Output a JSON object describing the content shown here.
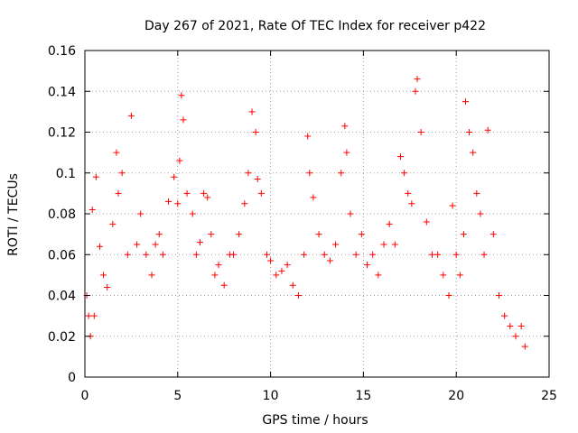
{
  "chart_data": {
    "type": "scatter",
    "title": "Day 267 of 2021, Rate Of TEC Index for receiver p422",
    "xlabel": "GPS time / hours",
    "ylabel": "ROTI / TECUs",
    "xlim": [
      0,
      25
    ],
    "ylim": [
      0,
      0.16
    ],
    "xticks": [
      0,
      5,
      10,
      15,
      20,
      25
    ],
    "yticks": [
      0,
      0.02,
      0.04,
      0.06,
      0.08,
      0.1,
      0.12,
      0.14,
      0.16
    ],
    "xtick_labels": [
      "0",
      "5",
      "10",
      "15",
      "20",
      "25"
    ],
    "ytick_labels": [
      "0",
      "0.02",
      "0.04",
      "0.06",
      "0.08",
      "0.1",
      "0.12",
      "0.14",
      "0.16"
    ],
    "grid": true,
    "marker": "+",
    "color": "#ff0000",
    "series": [
      {
        "x": [
          0.1,
          0.2,
          0.3,
          0.4,
          0.5,
          0.6,
          0.8,
          1.0,
          1.2,
          1.5,
          1.7,
          1.8,
          2.0,
          2.3,
          2.5,
          2.8,
          3.0,
          3.3,
          3.6,
          3.8,
          4.0,
          4.2,
          4.5,
          4.8,
          5.0,
          5.1,
          5.2,
          5.3,
          5.5,
          5.8,
          6.0,
          6.2,
          6.4,
          6.6,
          6.8,
          7.0,
          7.2,
          7.5,
          7.8,
          8.0,
          8.3,
          8.6,
          8.8,
          9.0,
          9.2,
          9.3,
          9.5,
          9.8,
          10.0,
          10.3,
          10.6,
          10.9,
          11.2,
          11.5,
          11.8,
          12.0,
          12.1,
          12.3,
          12.6,
          12.9,
          13.2,
          13.5,
          13.8,
          14.0,
          14.1,
          14.3,
          14.6,
          14.9,
          15.2,
          15.5,
          15.8,
          16.1,
          16.4,
          16.7,
          17.0,
          17.2,
          17.4,
          17.6,
          17.8,
          17.9,
          18.1,
          18.4,
          18.7,
          19.0,
          19.3,
          19.6,
          19.8,
          20.0,
          20.2,
          20.4,
          20.5,
          20.7,
          20.9,
          21.1,
          21.3,
          21.5,
          21.7,
          22.0,
          22.3,
          22.6,
          22.9,
          23.2,
          23.5,
          23.7
        ],
        "y": [
          0.04,
          0.03,
          0.02,
          0.082,
          0.03,
          0.098,
          0.064,
          0.05,
          0.044,
          0.075,
          0.11,
          0.09,
          0.1,
          0.06,
          0.128,
          0.065,
          0.08,
          0.06,
          0.05,
          0.065,
          0.07,
          0.06,
          0.086,
          0.098,
          0.085,
          0.106,
          0.138,
          0.126,
          0.09,
          0.08,
          0.06,
          0.066,
          0.09,
          0.088,
          0.07,
          0.05,
          0.055,
          0.045,
          0.06,
          0.06,
          0.07,
          0.085,
          0.1,
          0.13,
          0.12,
          0.097,
          0.09,
          0.06,
          0.057,
          0.05,
          0.052,
          0.055,
          0.045,
          0.04,
          0.06,
          0.118,
          0.1,
          0.088,
          0.07,
          0.06,
          0.057,
          0.065,
          0.1,
          0.123,
          0.11,
          0.08,
          0.06,
          0.07,
          0.055,
          0.06,
          0.05,
          0.065,
          0.075,
          0.065,
          0.108,
          0.1,
          0.09,
          0.085,
          0.14,
          0.146,
          0.12,
          0.076,
          0.06,
          0.06,
          0.05,
          0.04,
          0.084,
          0.06,
          0.05,
          0.07,
          0.135,
          0.12,
          0.11,
          0.09,
          0.08,
          0.06,
          0.121,
          0.07,
          0.04,
          0.03,
          0.025,
          0.02,
          0.025,
          0.015
        ]
      }
    ]
  }
}
